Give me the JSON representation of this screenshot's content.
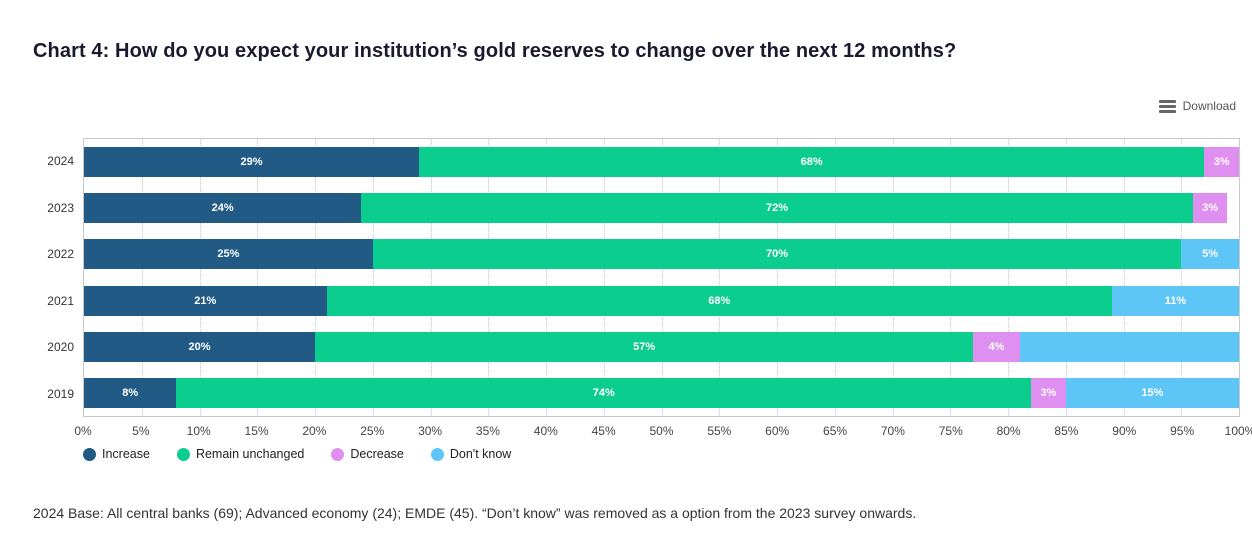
{
  "title": "Chart 4: How do you expect your institution’s gold reserves to change over the next 12 months?",
  "toolbar": {
    "download_label": "Download"
  },
  "footer": "2024 Base: All central banks (69); Advanced economy (24); EMDE (45). “Don’t know” was removed as a option from the 2023 survey onwards.",
  "chart_data": {
    "type": "bar",
    "orientation": "horizontal",
    "stacked": true,
    "grid": "vertical-dotted",
    "legend_position": "bottom-left",
    "xlim": [
      0,
      100
    ],
    "x_ticks": [
      "0%",
      "5%",
      "10%",
      "15%",
      "20%",
      "25%",
      "30%",
      "35%",
      "40%",
      "45%",
      "50%",
      "55%",
      "60%",
      "65%",
      "70%",
      "75%",
      "80%",
      "85%",
      "90%",
      "95%",
      "100%"
    ],
    "categories": [
      "2024",
      "2023",
      "2022",
      "2021",
      "2020",
      "2019"
    ],
    "series": [
      {
        "name": "Increase",
        "color": "#205a85",
        "values": [
          29,
          24,
          25,
          21,
          20,
          8
        ],
        "labels": [
          "29%",
          "24%",
          "25%",
          "21%",
          "20%",
          "8%"
        ]
      },
      {
        "name": "Remain unchanged",
        "color": "#0bcd8d",
        "values": [
          68,
          72,
          70,
          68,
          57,
          74
        ],
        "labels": [
          "68%",
          "72%",
          "70%",
          "68%",
          "57%",
          "74%"
        ]
      },
      {
        "name": "Decrease",
        "color": "#df8ff0",
        "values": [
          3,
          3,
          0,
          0,
          4,
          3
        ],
        "labels": [
          "3%",
          "3%",
          "",
          "",
          "4%",
          "3%"
        ]
      },
      {
        "name": "Don't know",
        "color": "#5ec6f7",
        "values": [
          0,
          0,
          5,
          11,
          19,
          15
        ],
        "labels": [
          "",
          "",
          "5%",
          "11%",
          "",
          "15%"
        ]
      }
    ]
  }
}
